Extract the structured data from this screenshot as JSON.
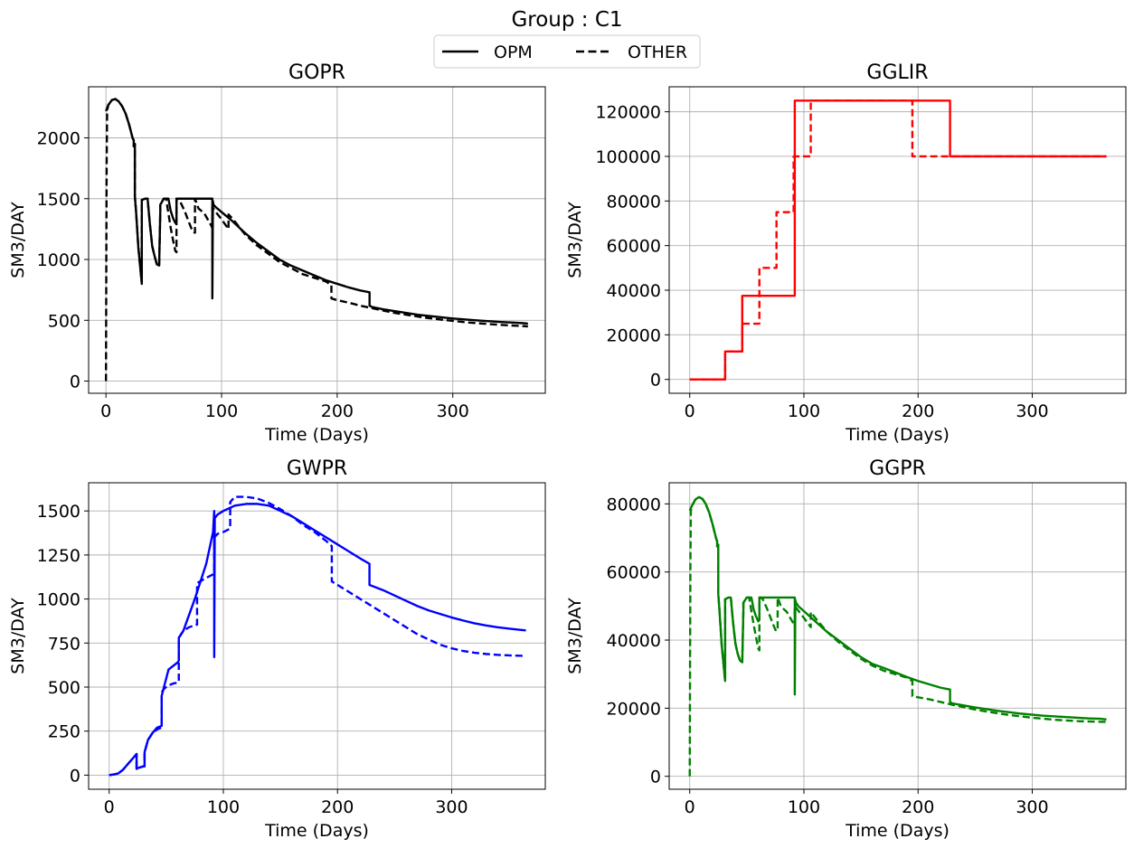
{
  "figure": {
    "suptitle": "Group : C1",
    "legend": {
      "placement": "top-center",
      "entries": [
        {
          "label": "OPM",
          "style": "solid"
        },
        {
          "label": "OTHER",
          "style": "dashed"
        }
      ]
    }
  },
  "chart_data": [
    {
      "type": "line",
      "title": "GOPR",
      "xlabel": "Time (Days)",
      "ylabel": "SM3/DAY",
      "color": "#000000",
      "xlim": [
        -15,
        380
      ],
      "ylim": [
        -100,
        2420
      ],
      "xticks": [
        0,
        100,
        200,
        300
      ],
      "yticks": [
        0,
        500,
        1000,
        1500,
        2000
      ],
      "grid": true,
      "series": [
        {
          "name": "OPM",
          "style": "solid",
          "x": [
            0,
            2,
            5,
            8,
            11,
            14,
            17,
            20,
            23,
            24,
            24,
            25,
            25,
            26,
            28,
            31,
            31,
            34,
            36,
            38,
            40,
            42,
            44,
            46,
            47,
            47,
            50,
            52,
            54,
            56,
            58,
            60,
            61,
            61,
            62,
            64,
            66,
            70,
            75,
            80,
            85,
            88,
            91,
            91.5,
            92,
            92,
            92.5,
            93,
            95,
            100,
            110,
            120,
            130,
            140,
            150,
            160,
            170,
            180,
            190,
            200,
            210,
            220,
            228,
            228,
            230,
            240,
            250,
            260,
            270,
            280,
            290,
            300,
            310,
            320,
            330,
            340,
            350,
            360,
            365
          ],
          "y": [
            2220,
            2270,
            2310,
            2320,
            2300,
            2260,
            2200,
            2110,
            2000,
            1980,
            1930,
            1950,
            1520,
            1400,
            1100,
            800,
            1490,
            1500,
            1500,
            1290,
            1110,
            1030,
            960,
            950,
            1400,
            1450,
            1500,
            1500,
            1500,
            1400,
            1340,
            1300,
            1320,
            1500,
            1500,
            1500,
            1500,
            1500,
            1500,
            1500,
            1500,
            1500,
            1500,
            1500,
            1500,
            680,
            1480,
            1450,
            1430,
            1390,
            1310,
            1220,
            1140,
            1070,
            1000,
            950,
            910,
            870,
            830,
            800,
            770,
            745,
            730,
            620,
            610,
            590,
            575,
            560,
            545,
            535,
            525,
            515,
            507,
            500,
            493,
            487,
            482,
            477,
            473
          ]
        },
        {
          "name": "OTHER",
          "style": "dashed",
          "x": [
            0,
            0.3,
            0.6,
            1,
            2,
            5,
            8,
            11,
            14,
            17,
            20,
            23,
            24,
            24,
            25,
            25,
            26,
            28,
            31,
            31,
            34,
            36,
            38,
            40,
            42,
            44,
            46,
            47,
            47,
            50,
            52,
            54,
            56,
            58,
            60,
            61,
            61,
            62,
            64,
            68,
            72,
            75,
            77,
            77,
            80,
            85,
            88,
            91,
            92,
            92,
            95,
            100,
            106,
            106,
            110,
            120,
            130,
            140,
            150,
            160,
            170,
            180,
            190,
            195,
            195,
            200,
            210,
            220,
            230,
            240,
            250,
            260,
            270,
            280,
            290,
            300,
            310,
            320,
            330,
            340,
            350,
            360,
            365
          ],
          "y": [
            0,
            1000,
            1800,
            2220,
            2270,
            2310,
            2320,
            2300,
            2260,
            2200,
            2110,
            2000,
            1980,
            1930,
            1950,
            1520,
            1400,
            1100,
            800,
            1490,
            1500,
            1500,
            1290,
            1110,
            1030,
            960,
            950,
            1400,
            1450,
            1500,
            1500,
            1380,
            1260,
            1160,
            1070,
            1060,
            1500,
            1500,
            1480,
            1400,
            1300,
            1230,
            1220,
            1500,
            1420,
            1380,
            1330,
            1280,
            1260,
            1430,
            1390,
            1330,
            1250,
            1370,
            1330,
            1210,
            1120,
            1050,
            980,
            930,
            880,
            850,
            820,
            790,
            680,
            665,
            645,
            620,
            600,
            580,
            560,
            545,
            530,
            517,
            505,
            495,
            485,
            477,
            470,
            463,
            458,
            453,
            450
          ]
        }
      ]
    },
    {
      "type": "line",
      "title": "GGLIR",
      "xlabel": "Time (Days)",
      "ylabel": "SM3/DAY",
      "color": "#ff0000",
      "xlim": [
        -18,
        382
      ],
      "ylim": [
        -6200,
        131200
      ],
      "xticks": [
        0,
        100,
        200,
        300
      ],
      "yticks": [
        0,
        20000,
        40000,
        60000,
        80000,
        100000,
        120000
      ],
      "grid": true,
      "series": [
        {
          "name": "OPM",
          "style": "solid",
          "x": [
            0,
            31,
            31,
            46,
            46,
            92,
            92,
            228,
            228,
            365
          ],
          "y": [
            0,
            0,
            12500,
            12500,
            37500,
            37500,
            125000,
            125000,
            100000,
            100000
          ]
        },
        {
          "name": "OTHER",
          "style": "dashed",
          "x": [
            0,
            31,
            31,
            46,
            46,
            61,
            61,
            76,
            76,
            91,
            91,
            106,
            106,
            195,
            195,
            365
          ],
          "y": [
            0,
            0,
            12500,
            12500,
            25000,
            25000,
            50000,
            50000,
            75000,
            75000,
            100000,
            100000,
            125000,
            125000,
            100000,
            100000
          ]
        }
      ]
    },
    {
      "type": "line",
      "title": "GWPR",
      "xlabel": "Time (Days)",
      "ylabel": "SM3/DAY",
      "color": "#0000ff",
      "xlim": [
        -18,
        382
      ],
      "ylim": [
        -80,
        1660
      ],
      "xticks": [
        0,
        100,
        200,
        300
      ],
      "yticks": [
        0,
        250,
        500,
        750,
        1000,
        1250,
        1500
      ],
      "grid": true,
      "series": [
        {
          "name": "OPM",
          "style": "solid",
          "x": [
            0,
            5,
            8,
            12,
            16,
            20,
            24,
            24,
            25,
            30,
            31,
            31,
            34,
            38,
            42,
            46,
            46,
            48,
            52,
            56,
            60,
            61,
            61,
            65,
            75,
            85,
            91,
            92,
            92,
            92.5,
            95,
            100,
            110,
            120,
            130,
            140,
            150,
            160,
            170,
            180,
            190,
            200,
            210,
            220,
            228,
            228,
            240,
            250,
            260,
            270,
            280,
            290,
            300,
            310,
            320,
            330,
            340,
            350,
            360,
            365
          ],
          "y": [
            0,
            5,
            10,
            30,
            60,
            90,
            120,
            35,
            40,
            50,
            50,
            130,
            200,
            240,
            270,
            280,
            450,
            500,
            600,
            620,
            640,
            650,
            780,
            820,
            1000,
            1200,
            1380,
            1500,
            670,
            1460,
            1480,
            1500,
            1530,
            1540,
            1540,
            1530,
            1500,
            1470,
            1430,
            1390,
            1350,
            1310,
            1270,
            1230,
            1200,
            1080,
            1050,
            1020,
            990,
            960,
            935,
            915,
            895,
            878,
            862,
            850,
            840,
            832,
            825,
            822
          ]
        },
        {
          "name": "OTHER",
          "style": "dashed",
          "x": [
            0,
            5,
            8,
            12,
            16,
            20,
            24,
            24,
            25,
            30,
            31,
            31,
            34,
            38,
            42,
            46,
            46,
            48,
            52,
            56,
            60,
            61,
            61,
            65,
            70,
            75,
            77,
            77,
            85,
            91,
            92,
            92,
            95,
            100,
            106,
            106,
            110,
            120,
            130,
            140,
            150,
            160,
            170,
            180,
            190,
            195,
            195,
            200,
            210,
            220,
            230,
            240,
            250,
            260,
            270,
            280,
            290,
            300,
            310,
            320,
            330,
            340,
            350,
            360,
            365
          ],
          "y": [
            0,
            5,
            10,
            30,
            60,
            90,
            120,
            35,
            40,
            50,
            50,
            130,
            200,
            240,
            260,
            270,
            470,
            490,
            510,
            520,
            525,
            530,
            780,
            820,
            840,
            850,
            855,
            1090,
            1120,
            1140,
            1150,
            1350,
            1370,
            1380,
            1400,
            1550,
            1580,
            1580,
            1570,
            1545,
            1510,
            1470,
            1420,
            1380,
            1330,
            1300,
            1100,
            1080,
            1040,
            1000,
            960,
            920,
            880,
            840,
            800,
            770,
            740,
            720,
            705,
            695,
            688,
            683,
            680,
            678,
            677
          ]
        }
      ]
    },
    {
      "type": "line",
      "title": "GGPR",
      "xlabel": "Time (Days)",
      "ylabel": "SM3/DAY",
      "color": "#008000",
      "xlim": [
        -18,
        382
      ],
      "ylim": [
        -3800,
        86200
      ],
      "xticks": [
        0,
        100,
        200,
        300
      ],
      "yticks": [
        0,
        20000,
        40000,
        60000,
        80000
      ],
      "grid": true,
      "series": [
        {
          "name": "OPM",
          "style": "solid",
          "x": [
            0,
            2,
            5,
            8,
            11,
            14,
            17,
            20,
            23,
            24,
            24,
            25,
            25,
            26,
            28,
            31,
            31,
            34,
            36,
            38,
            40,
            42,
            44,
            46,
            47,
            47,
            50,
            52,
            54,
            56,
            58,
            60,
            61,
            61,
            62,
            64,
            66,
            70,
            75,
            80,
            85,
            88,
            91,
            91.5,
            92,
            92,
            92.5,
            93,
            95,
            100,
            110,
            120,
            130,
            140,
            150,
            160,
            170,
            180,
            190,
            200,
            210,
            220,
            228,
            228,
            230,
            240,
            250,
            260,
            270,
            280,
            290,
            300,
            310,
            320,
            330,
            340,
            350,
            360,
            365
          ],
          "y": [
            78000,
            79500,
            81300,
            82000,
            81500,
            80000,
            77500,
            74000,
            70000,
            69000,
            67500,
            68000,
            53500,
            49000,
            38500,
            28000,
            52000,
            52500,
            52500,
            45000,
            39000,
            36000,
            34000,
            33500,
            49000,
            51000,
            52500,
            52500,
            52500,
            49000,
            47000,
            45500,
            46000,
            52500,
            52500,
            52500,
            52500,
            52500,
            52500,
            52500,
            52500,
            52500,
            52500,
            52500,
            52500,
            24000,
            51800,
            51000,
            50000,
            48500,
            45500,
            42500,
            40000,
            37500,
            35000,
            33000,
            31800,
            30500,
            29200,
            28000,
            27000,
            26000,
            25500,
            21800,
            21400,
            20800,
            20200,
            19700,
            19200,
            18800,
            18400,
            18100,
            17800,
            17600,
            17400,
            17200,
            17000,
            16900,
            16700
          ]
        },
        {
          "name": "OTHER",
          "style": "dashed",
          "x": [
            0,
            0.3,
            0.6,
            1,
            2,
            5,
            8,
            11,
            14,
            17,
            20,
            23,
            24,
            24,
            25,
            25,
            26,
            28,
            31,
            31,
            34,
            36,
            38,
            40,
            42,
            44,
            46,
            47,
            47,
            50,
            52,
            54,
            56,
            58,
            60,
            61,
            61,
            62,
            64,
            68,
            72,
            75,
            77,
            77,
            80,
            85,
            88,
            91,
            92,
            92,
            95,
            100,
            106,
            106,
            110,
            120,
            130,
            140,
            150,
            160,
            170,
            180,
            190,
            195,
            195,
            200,
            210,
            220,
            230,
            240,
            250,
            260,
            270,
            280,
            290,
            300,
            310,
            320,
            330,
            340,
            350,
            360,
            365
          ],
          "y": [
            0,
            35000,
            63000,
            78000,
            79500,
            81300,
            82000,
            81500,
            80000,
            77500,
            74000,
            70000,
            69000,
            67500,
            68000,
            53500,
            49000,
            38500,
            28000,
            52000,
            52500,
            52500,
            45000,
            39000,
            36000,
            34000,
            33500,
            49000,
            51000,
            52500,
            52500,
            48500,
            44500,
            41000,
            37500,
            37000,
            52500,
            52500,
            52000,
            49000,
            45500,
            43000,
            42700,
            52500,
            49800,
            48300,
            46500,
            44800,
            44000,
            50000,
            48700,
            46500,
            43800,
            48200,
            46500,
            42500,
            39500,
            37000,
            34500,
            32500,
            31000,
            30000,
            29000,
            28000,
            23500,
            23200,
            22600,
            21800,
            21000,
            20300,
            19600,
            19000,
            18500,
            18000,
            17600,
            17200,
            16900,
            16600,
            16400,
            16200,
            16100,
            16000,
            16000
          ]
        }
      ]
    }
  ]
}
